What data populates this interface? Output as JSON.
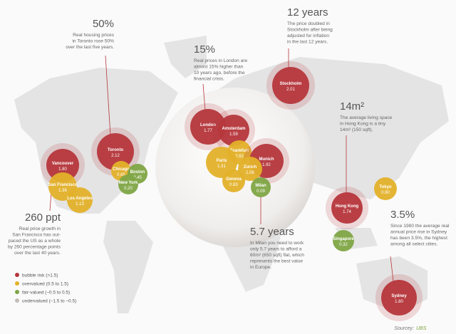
{
  "cities": [
    {
      "name": "Vancouver",
      "value": "1.80",
      "color": "#b5373c"
    },
    {
      "name": "San Francisco",
      "value": "1.36",
      "color": "#e3b12a"
    },
    {
      "name": "Los Angeles",
      "value": "1.13",
      "color": "#e3b12a"
    },
    {
      "name": "Toronto",
      "value": "2.12",
      "color": "#b5373c"
    },
    {
      "name": "Chicago",
      "value": "0.65",
      "color": "#e3b12a"
    },
    {
      "name": "Boston",
      "value": "0.45",
      "color": "#7fa545"
    },
    {
      "name": "New York",
      "value": "0.20",
      "color": "#7fa545"
    },
    {
      "name": "London",
      "value": "1.77",
      "color": "#b5373c"
    },
    {
      "name": "Amsterdam",
      "value": "1.59",
      "color": "#b5373c"
    },
    {
      "name": "Frankfurt",
      "value": "0.92",
      "color": "#e3b12a"
    },
    {
      "name": "Paris",
      "value": "1.31",
      "color": "#e3b12a"
    },
    {
      "name": "Munich",
      "value": "1.92",
      "color": "#b5373c"
    },
    {
      "name": "Zurich",
      "value": "1.08",
      "color": "#e3b12a"
    },
    {
      "name": "Geneva",
      "value": "0.83",
      "color": "#e3b12a"
    },
    {
      "name": "Milan",
      "value": "0.09",
      "color": "#7fa545"
    },
    {
      "name": "Stockholm",
      "value": "2.01",
      "color": "#b5373c"
    },
    {
      "name": "Hong Kong",
      "value": "1.74",
      "color": "#b5373c"
    },
    {
      "name": "Singapore",
      "value": "0.32",
      "color": "#7fa545"
    },
    {
      "name": "Tokyo",
      "value": "0.90",
      "color": "#e3b12a"
    },
    {
      "name": "Sydney",
      "value": "1.80",
      "color": "#b5373c"
    }
  ],
  "callouts": [
    {
      "title": "50%",
      "lines": [
        "Real housing prices",
        "in Toronto rose 50%",
        "over the last five years."
      ]
    },
    {
      "title": "15%",
      "lines": [
        "Real prices in London are",
        "almost 15% higher than",
        "10 years ago, before the",
        "financial crisis."
      ]
    },
    {
      "title": "12 years",
      "lines": [
        "The price doubled in",
        "Stockholm after being",
        "adjusted for inflation",
        "in the last 12 years."
      ]
    },
    {
      "title": "14m²",
      "lines": [
        "The average living space",
        "in Hong Kong is a tiny",
        "14m² (150 sqft)."
      ]
    },
    {
      "title": "3.5%",
      "lines": [
        "Since 1980 the average real",
        "annual price rise in Sydney",
        "has been 3.5%, the highest",
        "among all select cities."
      ]
    },
    {
      "title": "5.7 years",
      "lines": [
        "In Milan you need to work",
        "only 5.7 years to afford a",
        "60m² (650 sqft) flat, which",
        "represents the best value",
        "in Europe."
      ]
    },
    {
      "title": "260 ppt",
      "lines": [
        "Real price growth in",
        "San Francisco has out-",
        "paced the US as a whole",
        "by 260 percentage points",
        "over the last 40 years."
      ]
    }
  ],
  "legend": [
    {
      "label": "bubble risk (>1.5)",
      "color": "#b5373c"
    },
    {
      "label": "overvalued (0.5 to 1.5)",
      "color": "#e3b12a"
    },
    {
      "label": "fair-valued (–0.5 to 0.5)",
      "color": "#7fa545"
    },
    {
      "label": "undervalued (–1.5 to –0.5)",
      "color": "#c4bcb6"
    }
  ],
  "source": {
    "prefix": "Sourcey:",
    "name": "UBS"
  }
}
